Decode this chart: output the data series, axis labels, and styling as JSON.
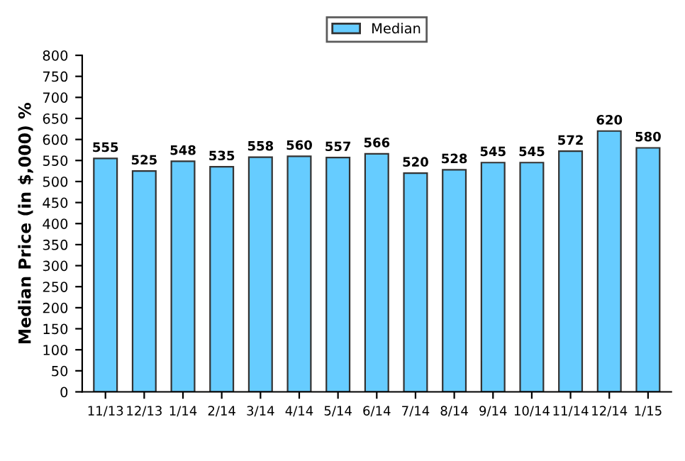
{
  "chart_data": {
    "type": "bar",
    "ylabel": "Median Price (in $,000) %",
    "categories": [
      "11/13",
      "12/13",
      "1/14",
      "2/14",
      "3/14",
      "4/14",
      "5/14",
      "6/14",
      "7/14",
      "8/14",
      "9/14",
      "10/14",
      "11/14",
      "12/14",
      "1/15"
    ],
    "series": [
      {
        "name": "Median",
        "color": "#66ccff",
        "values": [
          555,
          525,
          548,
          535,
          558,
          560,
          557,
          566,
          520,
          528,
          545,
          545,
          572,
          620,
          580
        ]
      }
    ],
    "ylim": [
      0,
      800
    ],
    "yticks": [
      0,
      50,
      100,
      150,
      200,
      250,
      300,
      350,
      400,
      450,
      500,
      550,
      600,
      650,
      700,
      750,
      800
    ],
    "data_labels": true,
    "legend": "top",
    "grid": false
  }
}
